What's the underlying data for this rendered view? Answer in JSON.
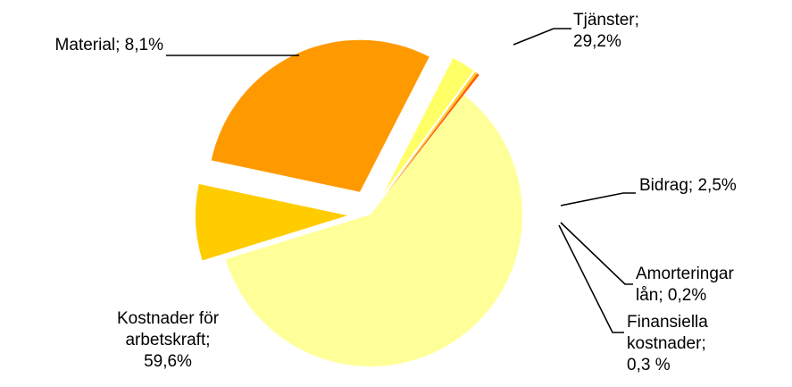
{
  "chart_data": {
    "type": "pie",
    "title": "",
    "slices": [
      {
        "label_lines": [
          "Tjänster;",
          "29,2%"
        ],
        "value": 29.2,
        "color": "#ff9900"
      },
      {
        "label_lines": [
          "Bidrag; 2,5%"
        ],
        "value": 2.5,
        "color": "#ffff66"
      },
      {
        "label_lines": [
          "Amorteringar",
          "lån; 0,2%"
        ],
        "value": 0.2,
        "color": "#ffcc00"
      },
      {
        "label_lines": [
          "Finansiella",
          "kostnader;",
          "0,3 %"
        ],
        "value": 0.3,
        "color": "#ff6600"
      },
      {
        "label_lines": [
          "Kostnader för",
          "arbetskraft;",
          "59,6%"
        ],
        "value": 59.6,
        "color": "#ffff99"
      },
      {
        "label_lines": [
          "Material; 8,1%"
        ],
        "value": 8.1,
        "color": "#ffcc00"
      }
    ]
  }
}
